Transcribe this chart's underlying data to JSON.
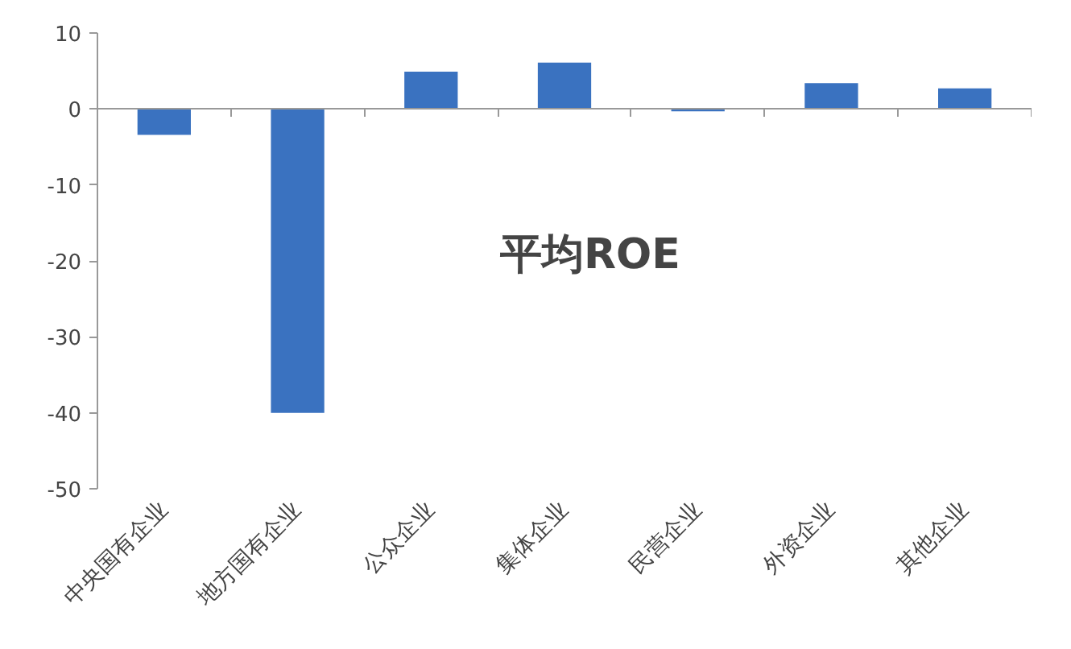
{
  "chart_data": {
    "type": "bar",
    "title": "平均ROE",
    "categories": [
      "中央国有企业",
      "地方国有企业",
      "公众企业",
      "集体企业",
      "民营企业",
      "外资企业",
      "其他企业"
    ],
    "values": [
      -3.4,
      -40,
      4.9,
      6.1,
      -0.3,
      3.4,
      2.7
    ],
    "color": "#3a72c0",
    "ylim": [
      -50,
      10
    ],
    "yticks": [
      -50,
      -40,
      -30,
      -20,
      -10,
      0,
      10
    ]
  }
}
